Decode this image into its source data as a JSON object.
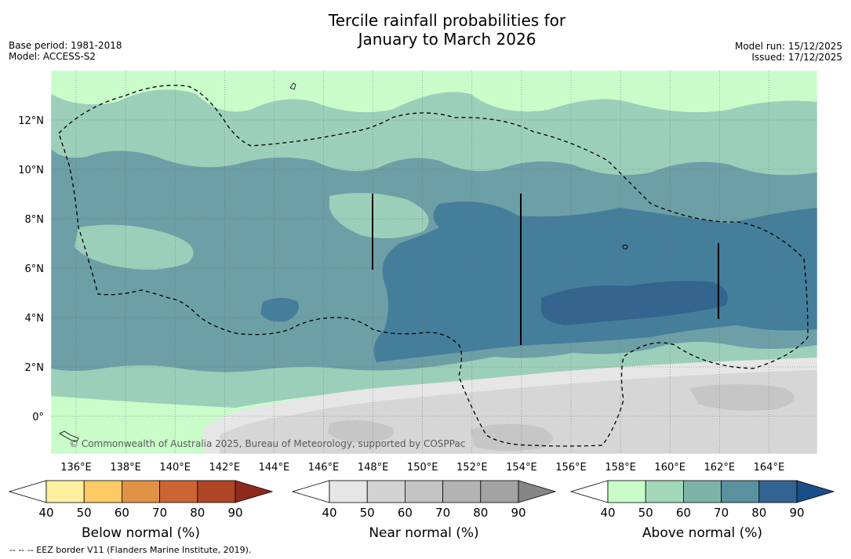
{
  "header": {
    "title_line1": "Tercile rainfall probabilities for",
    "title_line2": "January to March 2026",
    "base_period": "Base period: 1981-2018",
    "model": "Model: ACCESS-S2",
    "model_run": "Model run: 15/12/2025",
    "issued": "Issued: 17/12/2025"
  },
  "map": {
    "longitude_labels": [
      "136°E",
      "138°E",
      "140°E",
      "142°E",
      "144°E",
      "146°E",
      "148°E",
      "150°E",
      "152°E",
      "154°E",
      "156°E",
      "158°E",
      "160°E",
      "162°E",
      "164°E"
    ],
    "latitude_labels": [
      "12°N",
      "10°N",
      "8°N",
      "6°N",
      "4°N",
      "2°N",
      "0°"
    ],
    "copyright": "© Commonwealth of Australia 2025, Bureau of Meteorology, supported by COSPPac"
  },
  "colorbars": [
    {
      "name": "below-normal",
      "label": "Below normal (%)",
      "ticks": [
        "40",
        "50",
        "60",
        "70",
        "80",
        "90"
      ],
      "colors": [
        "#ffffff",
        "#fff0a0",
        "#fdc964",
        "#e29244",
        "#cc6433",
        "#ae4525",
        "#8f2a1c"
      ]
    },
    {
      "name": "near-normal",
      "label": "Near normal (%)",
      "ticks": [
        "40",
        "50",
        "60",
        "70",
        "80",
        "90"
      ],
      "colors": [
        "#ffffff",
        "#e6e6e6",
        "#d3d3d3",
        "#c3c3c3",
        "#b3b3b3",
        "#a3a3a3",
        "#868686"
      ]
    },
    {
      "name": "above-normal",
      "label": "Above normal (%)",
      "ticks": [
        "40",
        "50",
        "60",
        "70",
        "80",
        "90"
      ],
      "colors": [
        "#ffffff",
        "#c9fcc9",
        "#a2d8b8",
        "#7eb3a9",
        "#5a919f",
        "#336392",
        "#184e8a"
      ]
    }
  ],
  "footnote": "--  --  -- EEZ border V11 (Flanders Marine Institute, 2019).",
  "palette": {
    "above_50": "#c9fcc9",
    "above_60": "#9ccfb9",
    "above_70": "#6d9fa6",
    "above_80": "#457e9a",
    "above_90": "#33658f",
    "near_40": "#e6e6e6",
    "near_50": "#d6d6d6",
    "near_60": "#c6c6c6",
    "near_70": "#a8a8a8"
  }
}
